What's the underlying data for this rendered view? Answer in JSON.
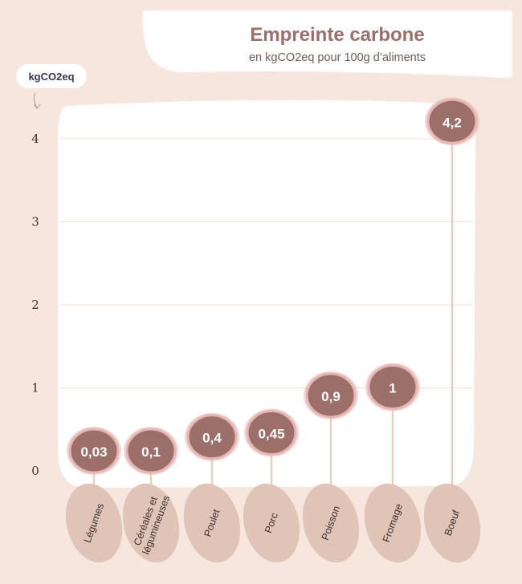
{
  "title": "Empreinte carbone",
  "subtitle": "en kgCO2eq pour 100g d’aliments",
  "unit_label": "kgCO2eq",
  "colors": {
    "background": "#f7e6de",
    "panel": "#ffffff",
    "bubble_fill": "#9d6f6b",
    "bubble_border": "#e6b6b2",
    "stem": "#e6cfc3",
    "category_blob": "#e0c4b8",
    "gridline": "#f3ddd4",
    "title": "#9c6f6a",
    "axis_text": "#333333"
  },
  "chart_data": {
    "type": "lollipop",
    "title": "Empreinte carbone",
    "subtitle": "en kgCO2eq pour 100g d’aliments",
    "ylabel": "kgCO2eq",
    "ylim": [
      0,
      4.2
    ],
    "yticks": [
      "0",
      "1",
      "2",
      "3",
      "4"
    ],
    "grid": true,
    "categories": [
      [
        "Légumes"
      ],
      [
        "Céréales et",
        "légumineuses"
      ],
      [
        "Poulet"
      ],
      [
        "Porc"
      ],
      [
        "Poisson"
      ],
      [
        "Fromage"
      ],
      [
        "Boeuf"
      ]
    ],
    "values": [
      0.03,
      0.1,
      0.4,
      0.45,
      0.9,
      1,
      4.2
    ],
    "value_labels": [
      "0,03",
      "0,1",
      "0,4",
      "0,45",
      "0,9",
      "1",
      "4,2"
    ]
  }
}
